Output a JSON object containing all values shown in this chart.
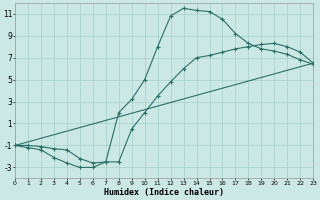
{
  "bg_color": "#cce8e5",
  "grid_color": "#aad4cf",
  "line_color": "#2a6e68",
  "xlabel": "Humidex (Indice chaleur)",
  "xlim": [
    0,
    23
  ],
  "ylim": [
    -4,
    12
  ],
  "xticks": [
    0,
    1,
    2,
    3,
    4,
    5,
    6,
    7,
    8,
    9,
    10,
    11,
    12,
    13,
    14,
    15,
    16,
    17,
    18,
    19,
    20,
    21,
    22,
    23
  ],
  "yticks": [
    -3,
    -1,
    1,
    3,
    5,
    7,
    9,
    11
  ],
  "curve1_x": [
    0,
    1,
    2,
    3,
    4,
    5,
    6,
    7,
    8,
    9,
    10,
    11,
    12,
    13,
    14,
    15,
    16,
    17,
    18,
    19,
    20,
    21,
    22,
    23
  ],
  "curve1_y": [
    -1.0,
    -1.2,
    -1.4,
    -2.1,
    -2.6,
    -3.0,
    -3.0,
    -2.5,
    2.0,
    3.2,
    5.0,
    8.0,
    10.8,
    11.5,
    11.3,
    11.2,
    10.5,
    9.2,
    8.3,
    7.8,
    7.6,
    7.3,
    6.8,
    6.4
  ],
  "curve2_x": [
    0,
    1,
    2,
    3,
    4,
    5,
    6,
    7,
    8,
    9,
    10,
    11,
    12,
    13,
    14,
    15,
    16,
    17,
    18,
    19,
    20,
    21,
    22,
    23
  ],
  "curve2_y": [
    -1.0,
    -1.0,
    -1.1,
    -1.3,
    -1.4,
    -2.2,
    -2.6,
    -2.5,
    -2.5,
    0.5,
    2.0,
    3.5,
    4.8,
    6.0,
    7.0,
    7.2,
    7.5,
    7.8,
    8.0,
    8.2,
    8.3,
    8.0,
    7.5,
    6.5
  ],
  "line_x": [
    0,
    23
  ],
  "line_y": [
    -1.0,
    6.5
  ]
}
